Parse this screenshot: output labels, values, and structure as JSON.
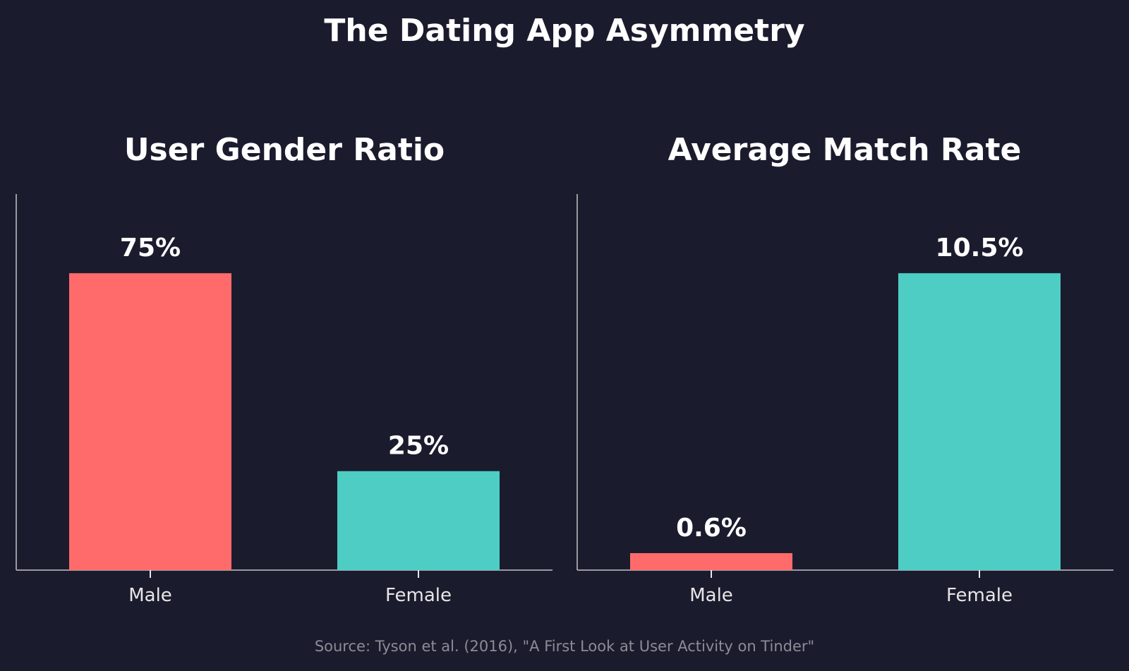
{
  "title": "The Dating App Asymmetry",
  "source": "Source: Tyson et al. (2016), \"A First Look at User Activity on Tinder\"",
  "chart_data": [
    {
      "type": "bar",
      "title": "User Gender Ratio",
      "categories": [
        "Male",
        "Female"
      ],
      "values": [
        75,
        25
      ],
      "value_labels": [
        "75%",
        "25%"
      ],
      "colors": [
        "#ff6b6b",
        "#4ecdc4"
      ],
      "ylim": [
        0,
        95
      ],
      "grid": false,
      "xlabel": "",
      "ylabel": ""
    },
    {
      "type": "bar",
      "title": "Average Match Rate",
      "categories": [
        "Male",
        "Female"
      ],
      "values": [
        0.6,
        10.5
      ],
      "value_labels": [
        "0.6%",
        "10.5%"
      ],
      "colors": [
        "#ff6b6b",
        "#4ecdc4"
      ],
      "ylim": [
        0,
        13.3
      ],
      "grid": false,
      "xlabel": "",
      "ylabel": ""
    }
  ]
}
